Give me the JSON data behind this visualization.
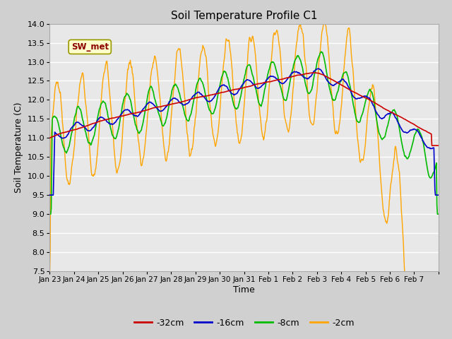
{
  "title": "Soil Temperature Profile C1",
  "xlabel": "Time",
  "ylabel": "Soil Temperature (C)",
  "ylim": [
    7.5,
    14.0
  ],
  "yticks": [
    7.5,
    8.0,
    8.5,
    9.0,
    9.5,
    10.0,
    10.5,
    11.0,
    11.5,
    12.0,
    12.5,
    13.0,
    13.5,
    14.0
  ],
  "colors": {
    "-32cm": "#cc0000",
    "-16cm": "#0000cc",
    "-8cm": "#00bb00",
    "-2cm": "#ffa500"
  },
  "legend_label": "SW_met",
  "fig_bg": "#d0d0d0",
  "ax_bg": "#e8e8e8",
  "grid_color": "#ffffff",
  "date_labels": [
    "Jan 23",
    "Jan 24",
    "Jan 25",
    "Jan 26",
    "Jan 27",
    "Jan 28",
    "Jan 29",
    "Jan 30",
    "Jan 31",
    "Feb 1",
    "Feb 2",
    "Feb 3",
    "Feb 4",
    "Feb 5",
    "Feb 6",
    "Feb 7"
  ]
}
